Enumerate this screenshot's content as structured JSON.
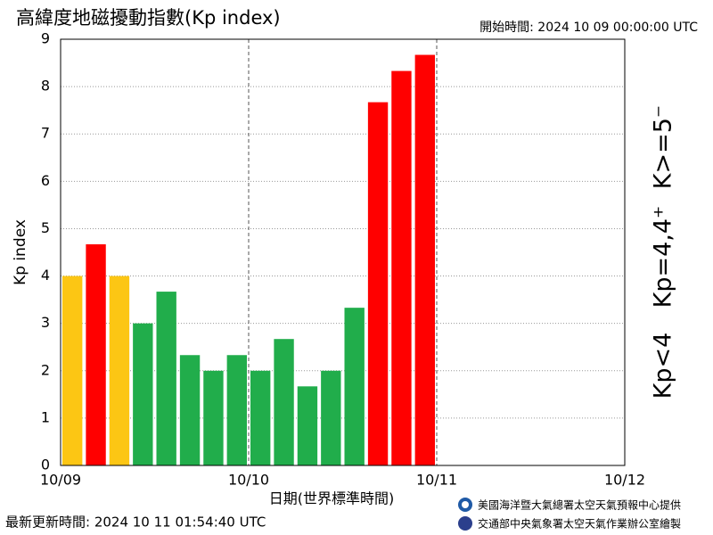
{
  "chart_data": {
    "type": "histogram",
    "title": "高緯度地磁擾動指數(Kp index)",
    "start_time": "開始時間:  2024 10 09 00:00:00 UTC",
    "updated": "最新更新時間: 2024 10 11 01:54:40 UTC",
    "credits": [
      "美國海洋暨大氣總署太空天氣預報中心提供",
      "交通部中央氣象署太空天氣作業辦公室繪製"
    ],
    "y_label": "Kp index",
    "x_label": "日期(世界標準時間)",
    "bins": [
      0,
      3,
      6,
      9,
      12,
      15,
      18,
      21,
      24,
      27,
      30,
      33,
      36,
      39,
      42,
      45,
      48
    ],
    "values": [
      4,
      4.67,
      4,
      3,
      3.67,
      2.33,
      2,
      2.33,
      2,
      2.67,
      1.67,
      2,
      3.33,
      7.67,
      8.33,
      8.67
    ],
    "colors": [
      "#fcc614",
      "#ff0000",
      "#fcc614",
      "#21ad4b",
      "#21ad4b",
      "#21ad4b",
      "#21ad4b",
      "#21ad4b",
      "#21ad4b",
      "#21ad4b",
      "#21ad4b",
      "#21ad4b",
      "#21ad4b",
      "#ff0000",
      "#ff0000",
      "#ff0000"
    ],
    "xlim": [
      0,
      72
    ],
    "xticks": [
      {
        "value": 0,
        "label": "10/09"
      },
      {
        "value": 24,
        "label": "10/10"
      },
      {
        "value": 48,
        "label": "10/11"
      },
      {
        "value": 72,
        "label": "10/12"
      }
    ],
    "ylim": [
      0,
      9
    ],
    "yticks": [
      0,
      1,
      2,
      3,
      4,
      5,
      6,
      7,
      8,
      9
    ],
    "grid": true,
    "legend": [
      {
        "label": "Kp<4",
        "color": "#21ad4b"
      },
      {
        "label": "Kp=4,4⁺",
        "color": "#fcc614"
      },
      {
        "label": "K>=5⁻",
        "color": "#ff0000"
      }
    ]
  }
}
